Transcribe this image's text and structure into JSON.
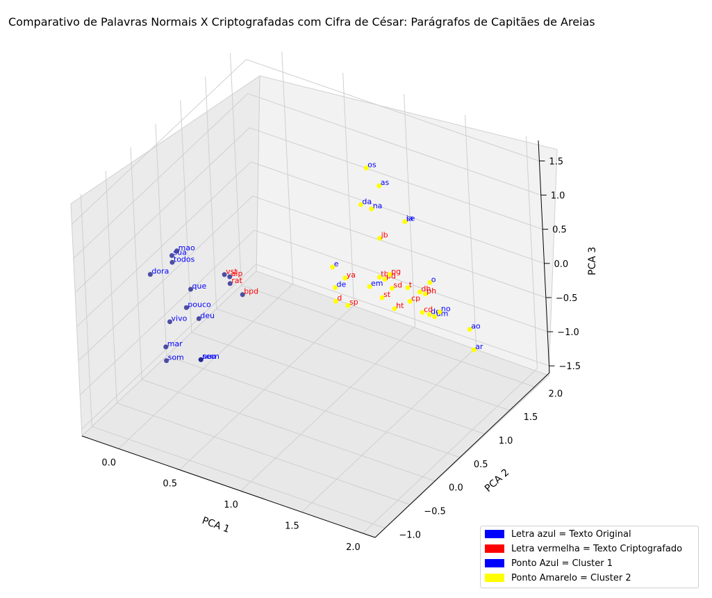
{
  "title": "Comparativo de Palavras Normais X Criptografadas com Cifra de César: Parágrafos de Capitães de Areias",
  "colors": {
    "original_text": "#0000ff",
    "crypt_text": "#ff0000",
    "cluster1": "#1a1a8c",
    "cluster2": "#ffff00"
  },
  "chart_data": {
    "type": "scatter",
    "projection": "3d",
    "title": "Comparativo de Palavras Normais X Criptografadas com Cifra de César: Parágrafos de Capitães de Areias",
    "xlabel": "PCA 1",
    "ylabel": "PCA 2",
    "zlabel": "PCA 3",
    "x_ticks": [
      "0.0",
      "0.5",
      "1.0",
      "1.5",
      "2.0"
    ],
    "y_ticks": [
      "−1.0",
      "−0.5",
      "0.0",
      "0.5",
      "1.0",
      "1.5",
      "2.0"
    ],
    "z_ticks": [
      "−1.5",
      "−1.0",
      "−0.5",
      "0.0",
      "0.5",
      "1.0",
      "1.5"
    ],
    "grid": true,
    "legend_position": "bottom-right",
    "legend": [
      {
        "label": "Letra azul = Texto Original",
        "color": "#0000ff"
      },
      {
        "label": "Letra vermelha = Texto Criptografado",
        "color": "#ff0000"
      },
      {
        "label": "Ponto Azul = Cluster 1",
        "color": "#0000ff"
      },
      {
        "label": "Ponto Amarelo = Cluster 2",
        "color": "#ffff00"
      }
    ],
    "points": [
      {
        "label": "da",
        "group": "original",
        "cluster": 2,
        "x": 0.9,
        "y": 1.6,
        "z": 0.6
      },
      {
        "label": "na",
        "group": "original",
        "cluster": 2,
        "x": 0.9,
        "y": 1.8,
        "z": 0.4
      },
      {
        "label": "os",
        "group": "original",
        "cluster": 2,
        "x": 0.7,
        "y": 2.2,
        "z": 0.6
      },
      {
        "label": "as",
        "group": "original",
        "cluster": 2,
        "x": 0.8,
        "y": 2.2,
        "z": 0.4
      },
      {
        "label": "ja",
        "group": "original",
        "cluster": 2,
        "x": 1.0,
        "y": 2.2,
        "z": 0.0
      },
      {
        "label": "se",
        "group": "original",
        "cluster": 2,
        "x": 1.0,
        "y": 2.2,
        "z": 0.0
      },
      {
        "label": "e",
        "group": "original",
        "cluster": 2,
        "x": 0.9,
        "y": 1.0,
        "z": 0.1
      },
      {
        "label": "de",
        "group": "original",
        "cluster": 2,
        "x": 1.0,
        "y": 0.8,
        "z": 0.0
      },
      {
        "label": "em",
        "group": "original",
        "cluster": 2,
        "x": 1.2,
        "y": 1.0,
        "z": 0.0
      },
      {
        "label": "do",
        "group": "original",
        "cluster": 2,
        "x": 1.6,
        "y": 1.2,
        "z": -0.3
      },
      {
        "label": "um",
        "group": "original",
        "cluster": 2,
        "x": 1.6,
        "y": 1.3,
        "z": -0.4
      },
      {
        "label": "no",
        "group": "original",
        "cluster": 2,
        "x": 1.6,
        "y": 1.4,
        "z": -0.4
      },
      {
        "label": "o",
        "group": "original",
        "cluster": 2,
        "x": 1.4,
        "y": 1.7,
        "z": -0.3
      },
      {
        "label": "ao",
        "group": "original",
        "cluster": 2,
        "x": 1.8,
        "y": 1.5,
        "z": -0.6
      },
      {
        "label": "ar",
        "group": "original",
        "cluster": 2,
        "x": 2.0,
        "y": 1.1,
        "z": -0.5
      },
      {
        "label": "ya",
        "group": "crypt",
        "cluster": 2,
        "x": 1.0,
        "y": 1.0,
        "z": 0.0
      },
      {
        "label": "d",
        "group": "crypt",
        "cluster": 2,
        "x": 1.0,
        "y": 0.8,
        "z": -0.2
      },
      {
        "label": "sp",
        "group": "crypt",
        "cluster": 2,
        "x": 1.1,
        "y": 0.8,
        "z": -0.2
      },
      {
        "label": "tb",
        "group": "crypt",
        "cluster": 2,
        "x": 1.2,
        "y": 1.2,
        "z": 0.0
      },
      {
        "label": "pd",
        "group": "crypt",
        "cluster": 2,
        "x": 1.2,
        "y": 1.3,
        "z": -0.1
      },
      {
        "label": "pg",
        "group": "crypt",
        "cluster": 2,
        "x": 1.2,
        "y": 1.4,
        "z": -0.1
      },
      {
        "label": "sd",
        "group": "crypt",
        "cluster": 2,
        "x": 1.3,
        "y": 1.2,
        "z": -0.1
      },
      {
        "label": "st",
        "group": "crypt",
        "cluster": 2,
        "x": 1.3,
        "y": 1.0,
        "z": -0.1
      },
      {
        "label": "ht",
        "group": "crypt",
        "cluster": 2,
        "x": 1.4,
        "y": 1.0,
        "z": -0.2
      },
      {
        "label": "jb",
        "group": "crypt",
        "cluster": 2,
        "x": 1.0,
        "y": 1.7,
        "z": 0.1
      },
      {
        "label": "cp",
        "group": "crypt",
        "cluster": 2,
        "x": 1.4,
        "y": 1.3,
        "z": -0.3
      },
      {
        "label": "t",
        "group": "crypt",
        "cluster": 2,
        "x": 1.3,
        "y": 1.5,
        "z": -0.3
      },
      {
        "label": "dh",
        "group": "crypt",
        "cluster": 2,
        "x": 1.4,
        "y": 1.5,
        "z": -0.3
      },
      {
        "label": "cd",
        "group": "crypt",
        "cluster": 2,
        "x": 1.5,
        "y": 1.3,
        "z": -0.4
      },
      {
        "label": "ph",
        "group": "crypt",
        "cluster": 2,
        "x": 1.4,
        "y": 1.6,
        "z": -0.4
      },
      {
        "label": "sua",
        "group": "original",
        "cluster": 1,
        "x": 0.0,
        "y": 0.0,
        "z": 0.4
      },
      {
        "label": "mao",
        "group": "original",
        "cluster": 1,
        "x": 0.0,
        "y": 0.1,
        "z": 0.4
      },
      {
        "label": "dora",
        "group": "original",
        "cluster": 1,
        "x": -0.1,
        "y": -0.2,
        "z": 0.2
      },
      {
        "label": "todos",
        "group": "original",
        "cluster": 1,
        "x": 0.0,
        "y": 0.0,
        "z": 0.3
      },
      {
        "label": "que",
        "group": "original",
        "cluster": 1,
        "x": 0.1,
        "y": 0.1,
        "z": -0.1
      },
      {
        "label": "pouco",
        "group": "original",
        "cluster": 1,
        "x": 0.1,
        "y": 0.0,
        "z": -0.3
      },
      {
        "label": "deu",
        "group": "original",
        "cluster": 1,
        "x": 0.2,
        "y": 0.0,
        "z": -0.4
      },
      {
        "label": "vivo",
        "group": "original",
        "cluster": 1,
        "x": 0.0,
        "y": -0.1,
        "z": -0.5
      },
      {
        "label": "mar",
        "group": "original",
        "cluster": 1,
        "x": 0.0,
        "y": -0.2,
        "z": -0.8
      },
      {
        "label": "som",
        "group": "original",
        "cluster": 1,
        "x": 0.0,
        "y": -0.2,
        "z": -1.0
      },
      {
        "label": "num",
        "group": "original",
        "cluster": 1,
        "x": 0.2,
        "y": 0.0,
        "z": -1.0
      },
      {
        "label": "seu",
        "group": "original",
        "cluster": 1,
        "x": 0.2,
        "y": 0.0,
        "z": -1.0
      },
      {
        "label": "vst",
        "group": "crypt",
        "cluster": 1,
        "x": 0.3,
        "y": 0.3,
        "z": 0.1
      },
      {
        "label": "alp",
        "group": "crypt",
        "cluster": 1,
        "x": 0.3,
        "y": 0.4,
        "z": 0.0
      },
      {
        "label": "rat",
        "group": "crypt",
        "cluster": 1,
        "x": 0.3,
        "y": 0.4,
        "z": -0.1
      },
      {
        "label": "bpd",
        "group": "crypt",
        "cluster": 1,
        "x": 0.4,
        "y": 0.4,
        "z": -0.2
      }
    ]
  }
}
